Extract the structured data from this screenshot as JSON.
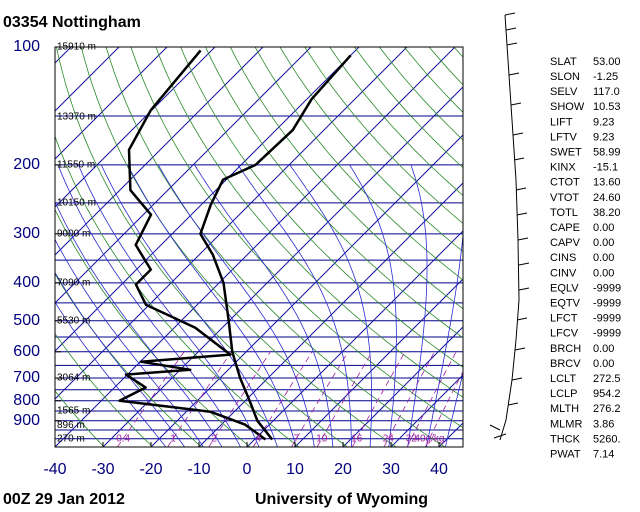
{
  "chart_data": {
    "type": "skewt",
    "title": "03354  Nottingham",
    "footer_left": "00Z 29 Jan 2012",
    "footer_right": "University of Wyoming",
    "xlim": [
      -40,
      45
    ],
    "xticks": [
      -40,
      -30,
      -20,
      -10,
      0,
      10,
      20,
      30,
      40
    ],
    "ylim": [
      1050,
      100
    ],
    "yticks": [
      100,
      200,
      300,
      400,
      500,
      600,
      700,
      800,
      900
    ],
    "log_y": true,
    "height_labels": [
      {
        "label": "15910 m",
        "pressure": 100
      },
      {
        "label": "13370 m",
        "pressure": 151
      },
      {
        "label": "11550 m",
        "pressure": 200
      },
      {
        "label": "10150 m",
        "pressure": 250
      },
      {
        "label": "9000 m",
        "pressure": 300
      },
      {
        "label": "7090 m",
        "pressure": 400
      },
      {
        "label": "5530 m",
        "pressure": 500
      },
      {
        "label": "3064 m",
        "pressure": 700
      },
      {
        "label": "1565 m",
        "pressure": 850
      },
      {
        "label": "896 m",
        "pressure": 925
      },
      {
        "label": "270 m",
        "pressure": 1000
      }
    ],
    "mixing_ratios": [
      0.4,
      1,
      2,
      4,
      7,
      10,
      16,
      24,
      32,
      {
        "value": 40,
        "label": "40g/kg"
      }
    ],
    "series": [
      {
        "color": "#000000",
        "pressure": [
          1005,
          900,
          800,
          700,
          600,
          500,
          400,
          339,
          300,
          253,
          218,
          200,
          163,
          136,
          105
        ],
        "values": [
          3.7,
          -3.3,
          -9.1,
          -15.8,
          -22.9,
          -30.1,
          -39.1,
          -47.2,
          -54.1,
          -58,
          -60.7,
          -57,
          -56.5,
          -59,
          -60
        ]
      },
      {
        "color": "#000000",
        "pressure": [
          1005,
          921,
          853,
          818,
          800,
          740,
          686,
          667,
          636,
          610,
          521,
          455,
          404,
          370,
          320,
          268,
          232,
          183,
          145,
          102
        ],
        "values": [
          2.3,
          -5,
          -15,
          -28.9,
          -36.2,
          -33.5,
          -40.3,
          -27.9,
          -39.9,
          -22.7,
          -35.6,
          -50.7,
          -57,
          -57,
          -65.3,
          -68.4,
          -77.8,
          -86.5,
          -90.2,
          -92.3
        ]
      }
    ]
  },
  "indices": {
    "rows": [
      [
        "SLAT",
        "53.00"
      ],
      [
        "SLON",
        "-1.25"
      ],
      [
        "SELV",
        "117.0"
      ],
      [
        "SHOW",
        "10.53"
      ],
      [
        "LIFT",
        "9.23"
      ],
      [
        "LFTV",
        "9.23"
      ],
      [
        "SWET",
        "58.99"
      ],
      [
        "KINX",
        "-15.1"
      ],
      [
        "CTOT",
        "13.60"
      ],
      [
        "VTOT",
        "24.60"
      ],
      [
        "TOTL",
        "38.20"
      ],
      [
        "CAPE",
        "0.00"
      ],
      [
        "CAPV",
        "0.00"
      ],
      [
        "CINS",
        "0.00"
      ],
      [
        "CINV",
        "0.00"
      ],
      [
        "EQLV",
        "-9999"
      ],
      [
        "EQTV",
        "-9999"
      ],
      [
        "LFCT",
        "-9999"
      ],
      [
        "LFCV",
        "-9999"
      ],
      [
        "BRCH",
        "0.00"
      ],
      [
        "BRCV",
        "0.00"
      ],
      [
        "LCLT",
        "272.5"
      ],
      [
        "LCLP",
        "954.2"
      ],
      [
        "MLTH",
        "276.2"
      ],
      [
        "MLMR",
        "3.86"
      ],
      [
        "THCK",
        "5260."
      ],
      [
        "PWAT",
        "7.14"
      ]
    ]
  }
}
